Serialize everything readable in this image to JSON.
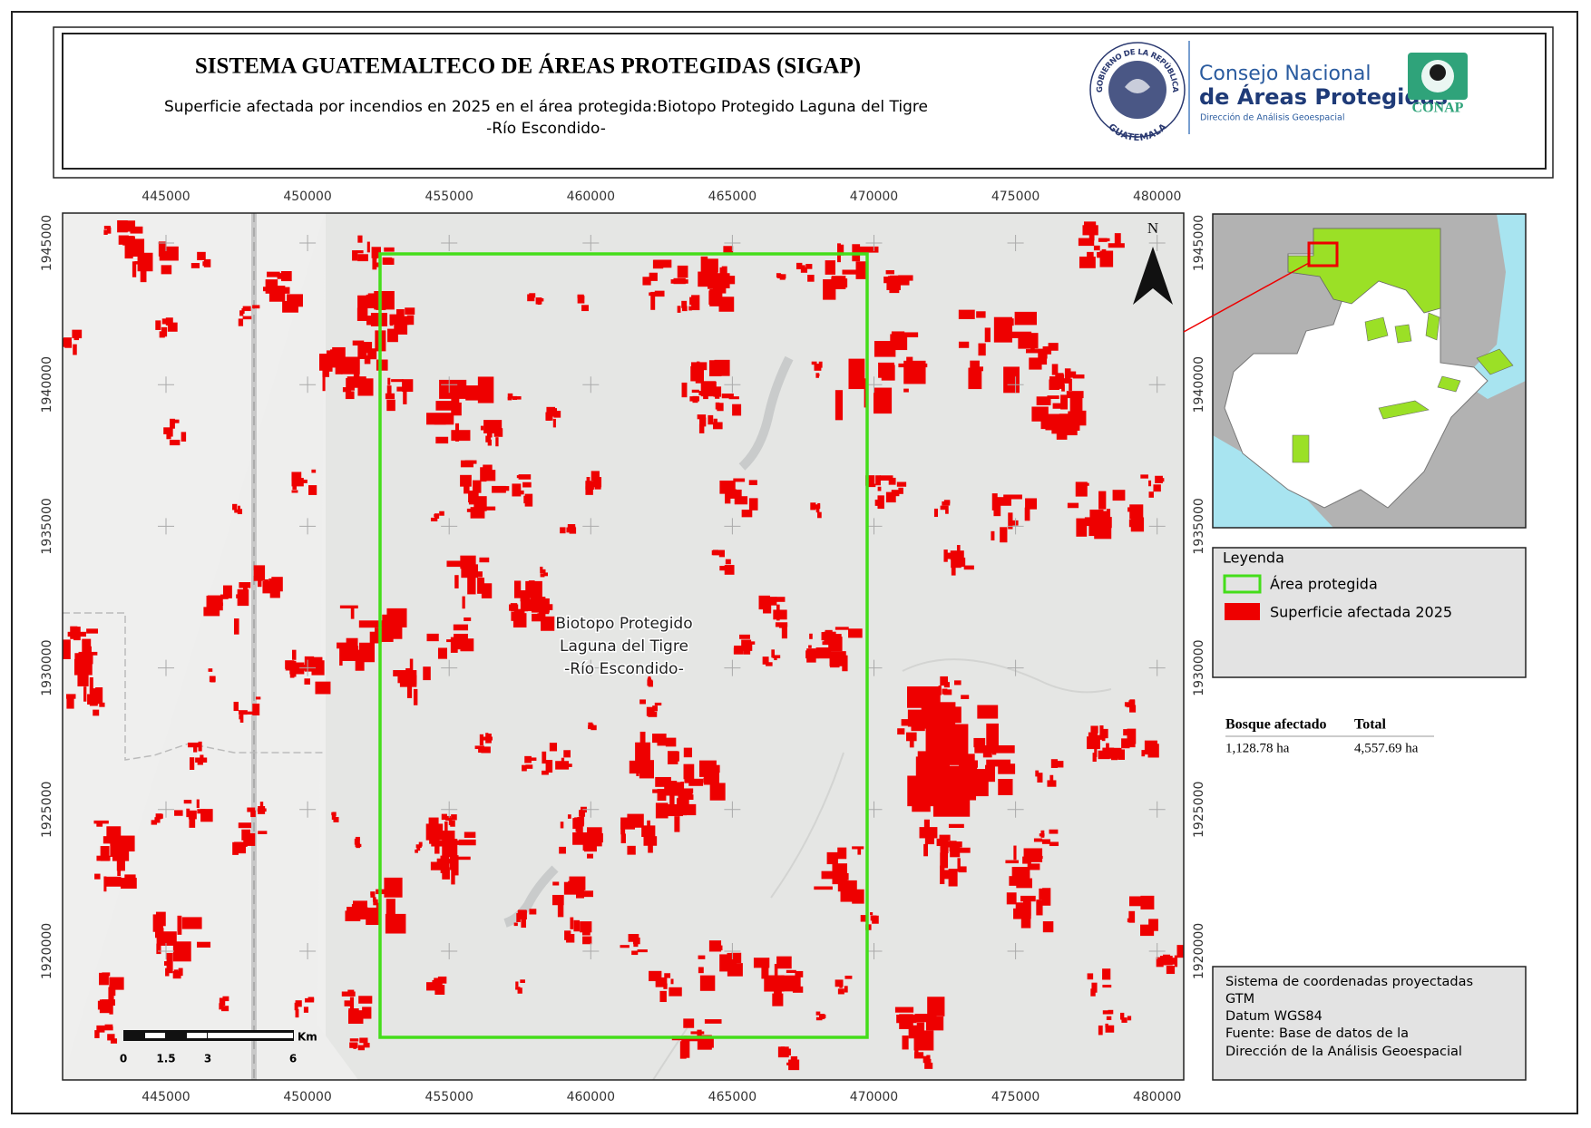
{
  "header": {
    "title": "SISTEMA GUATEMALTECO DE ÁREAS PROTEGIDAS  (SIGAP)",
    "subtitle_line1": "Superficie afectada por incendios en 2025 en el área protegida:Biotopo Protegido Laguna del Tigre",
    "subtitle_line2": "-Río Escondido-"
  },
  "logos": {
    "seal_top": "GOBIERNO DE LA REPÚBLICA",
    "seal_bottom": "GUATEMALA",
    "conap_line1": "Consejo Nacional",
    "conap_line2": "de Áreas Protegidas",
    "conap_line3": "Dirección de Análisis Geoespacial",
    "conap_badge": "CONAP"
  },
  "map": {
    "x_ticks": [
      445000,
      450000,
      455000,
      460000,
      465000,
      470000,
      475000,
      480000
    ],
    "y_ticks": [
      1945000,
      1940000,
      1935000,
      1930000,
      1925000,
      1920000
    ],
    "area_label": [
      "Biotopo Protegido",
      "Laguna del Tigre",
      "-Río Escondido-"
    ],
    "north": "N",
    "scale_unit": "Km",
    "scale_labels": [
      "0",
      "1.5",
      "3",
      "6"
    ]
  },
  "legend": {
    "title": "Leyenda",
    "items": [
      "Área protegida",
      "Superficie afectada 2025"
    ]
  },
  "table": {
    "headers": [
      "Bosque afectado",
      "Total"
    ],
    "rows": [
      [
        "1,128.78 ha",
        "4,557.69 ha"
      ]
    ]
  },
  "info": {
    "lines": [
      "Sistema de coordenadas proyectadas",
      "GTM",
      "Datum WGS84",
      "Fuente: Base de datos de la",
      "Dirección de la Análisis Geoespacial"
    ]
  }
}
